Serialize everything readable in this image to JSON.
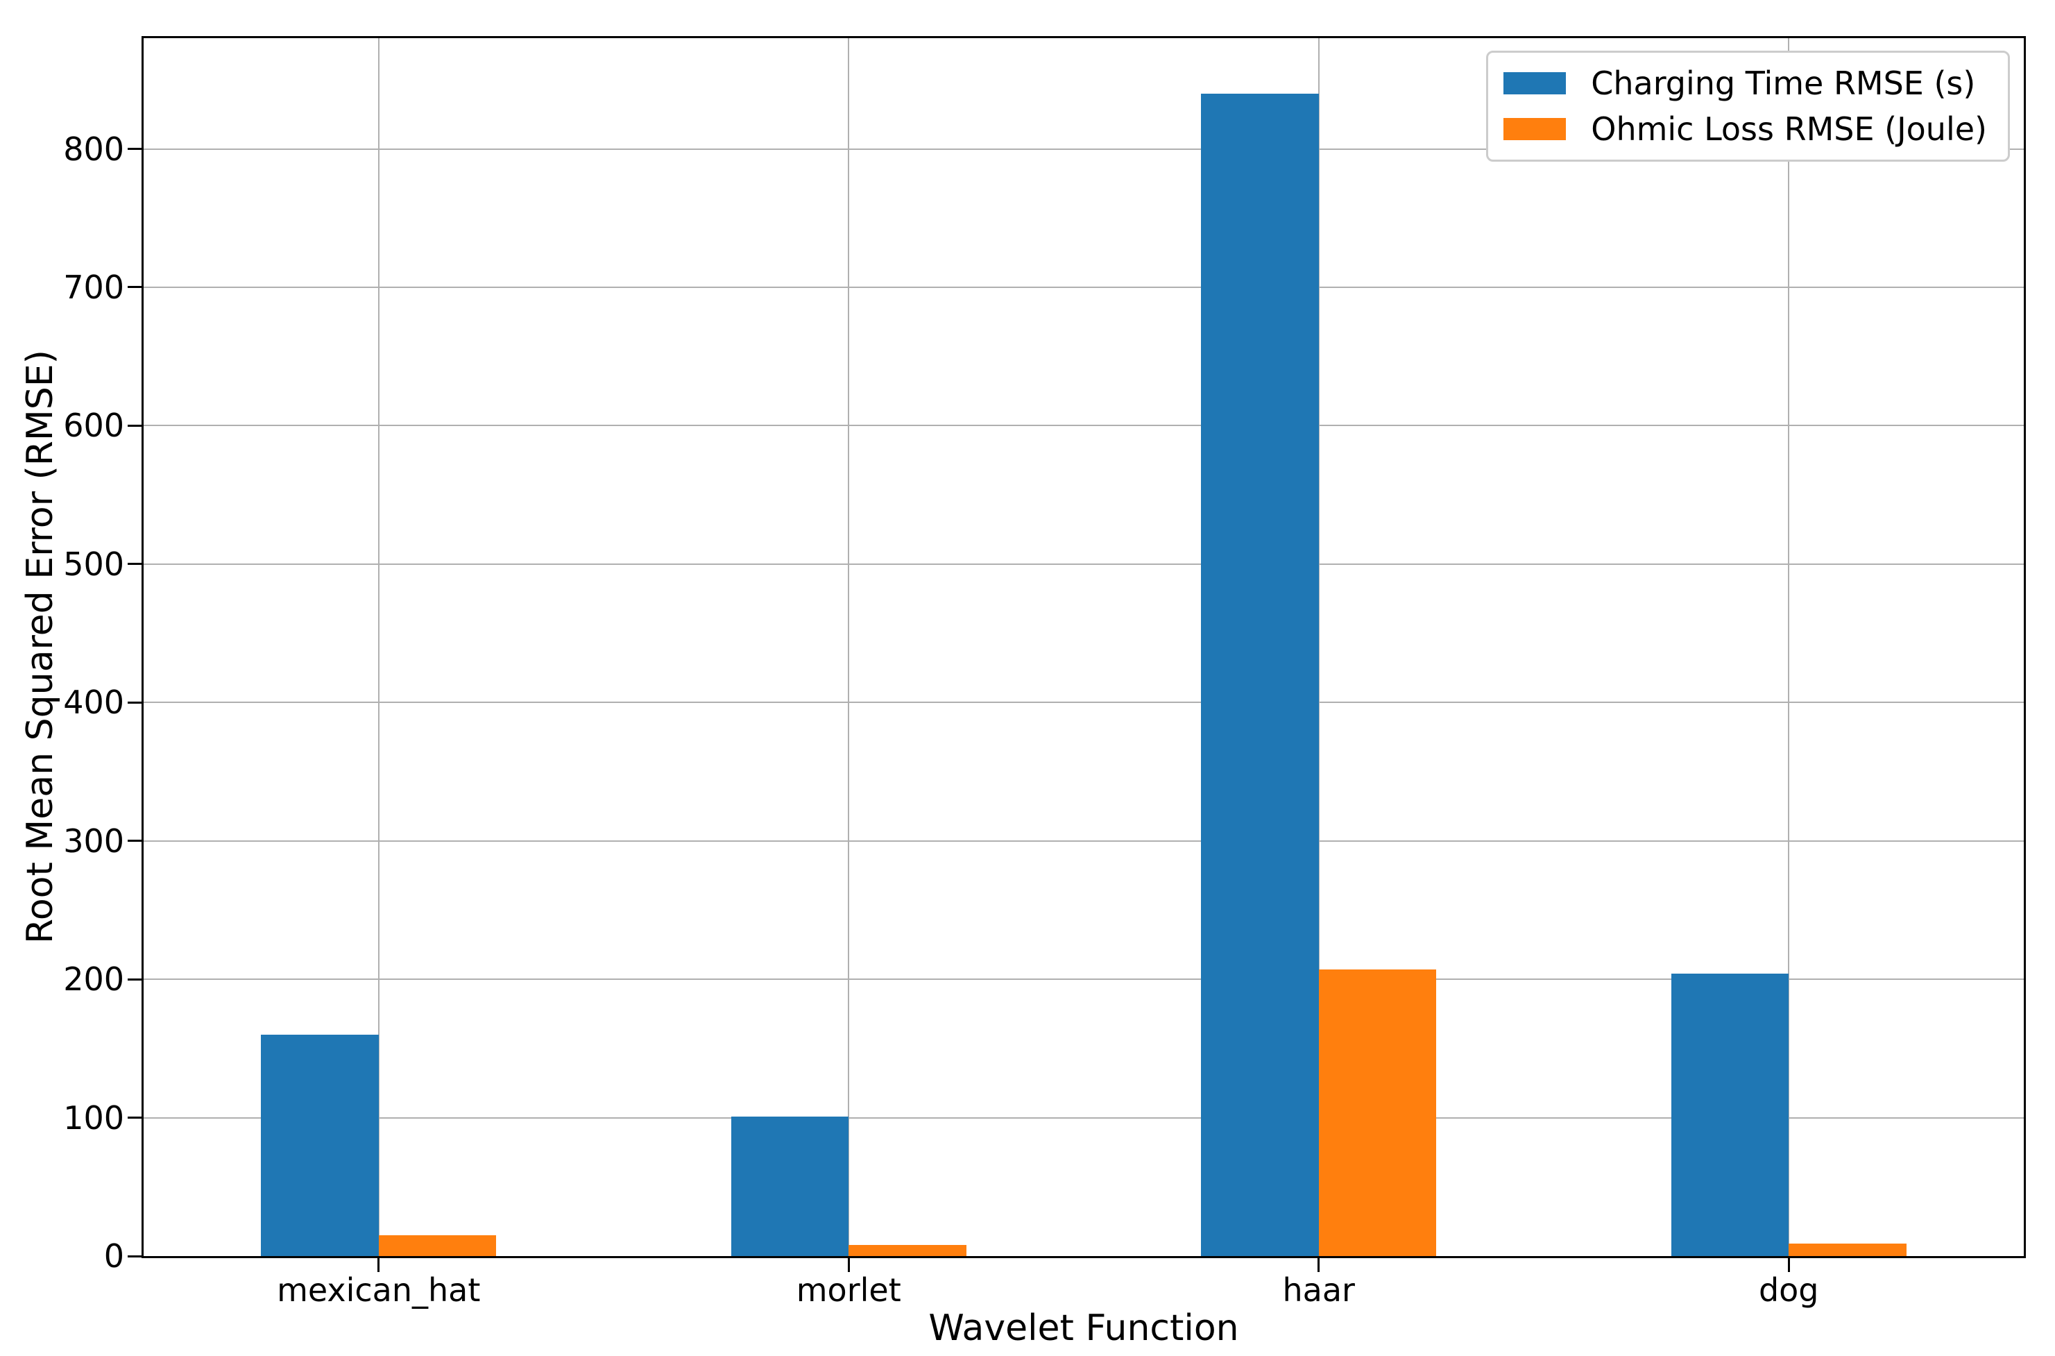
{
  "chart_data": {
    "type": "bar",
    "categories": [
      "mexican_hat",
      "morlet",
      "haar",
      "dog"
    ],
    "series": [
      {
        "name": "Charging Time RMSE (s)",
        "color": "#1f77b4",
        "values": [
          160,
          101,
          840,
          204
        ]
      },
      {
        "name": "Ohmic Loss RMSE (Joule)",
        "color": "#ff7f0e",
        "values": [
          15,
          8,
          207,
          9
        ]
      }
    ],
    "xlabel": "Wavelet Function",
    "ylabel": "Root Mean Squared Error (RMSE)",
    "ylim": [
      0,
      880
    ],
    "yticks": [
      0,
      100,
      200,
      300,
      400,
      500,
      600,
      700,
      800
    ],
    "grid": true,
    "legend_position": "upper right",
    "bar_width_frac": 0.25
  },
  "colors": {
    "background": "#ffffff",
    "grid": "#b0b0b0",
    "spine": "#000000",
    "tick": "#000000",
    "legend_border": "#cccccc",
    "text": "#000000"
  }
}
